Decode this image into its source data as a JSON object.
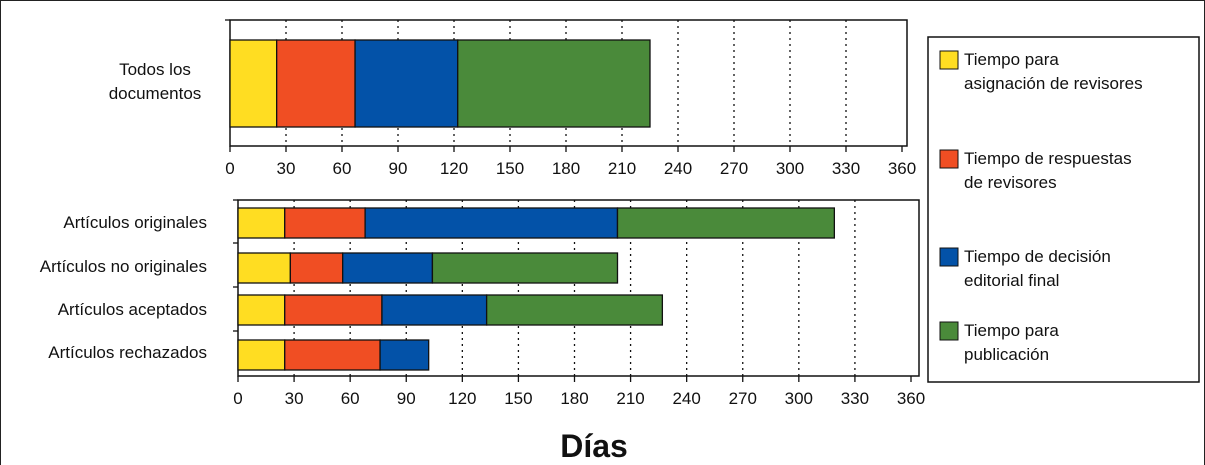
{
  "chart_data": [
    {
      "type": "bar",
      "orientation": "horizontal",
      "stacked": true,
      "categories": [
        "Todos los documentos"
      ],
      "series": [
        {
          "name": "Tiempo para asignación de revisores",
          "values": [
            25
          ]
        },
        {
          "name": "Tiempo de respuestas de revisores",
          "values": [
            42
          ]
        },
        {
          "name": "Tiempo de decisión editorial final",
          "values": [
            55
          ]
        },
        {
          "name": "Tiempo para publicación",
          "values": [
            103
          ]
        }
      ],
      "xlim": [
        0,
        360
      ],
      "xticks": [
        "0",
        "30",
        "60",
        "90",
        "120",
        "150",
        "180",
        "210",
        "240",
        "270",
        "300",
        "330",
        "360"
      ],
      "grid": "vertical dotted"
    },
    {
      "type": "bar",
      "orientation": "horizontal",
      "stacked": true,
      "categories": [
        "Artículos originales",
        "Artículos no originales",
        "Artículos aceptados",
        "Artículos rechazados"
      ],
      "series": [
        {
          "name": "Tiempo para asignación de revisores",
          "values": [
            25,
            28,
            25,
            25
          ]
        },
        {
          "name": "Tiempo de respuestas de revisores",
          "values": [
            43,
            28,
            52,
            51
          ]
        },
        {
          "name": "Tiempo de decisión editorial final",
          "values": [
            135,
            48,
            56,
            26
          ]
        },
        {
          "name": "Tiempo para publicación",
          "values": [
            116,
            99,
            94,
            0
          ]
        }
      ],
      "xlim": [
        0,
        360
      ],
      "xticks": [
        "0",
        "30",
        "60",
        "90",
        "120",
        "150",
        "180",
        "210",
        "240",
        "270",
        "300",
        "330",
        "360"
      ],
      "grid": "vertical dotted"
    }
  ],
  "xlabel": "Días",
  "legend": {
    "placement": "right",
    "items": [
      {
        "line1": "Tiempo para",
        "line2": "asignación de revisores",
        "color": "#FFDD22"
      },
      {
        "line1": "Tiempo de respuestas",
        "line2": "de revisores",
        "color": "#F04E23"
      },
      {
        "line1": "Tiempo de decisión",
        "line2": "editorial final",
        "color": "#0352A8"
      },
      {
        "line1": "Tiempo para",
        "line2": "publicación",
        "color": "#4A8A3A"
      }
    ]
  },
  "categories_display": {
    "top": [
      [
        "Todos los",
        "documentos"
      ]
    ],
    "bottom": [
      "Artículos originales",
      "Artículos no originales",
      "Artículos aceptados",
      "Artículos rechazados"
    ]
  }
}
